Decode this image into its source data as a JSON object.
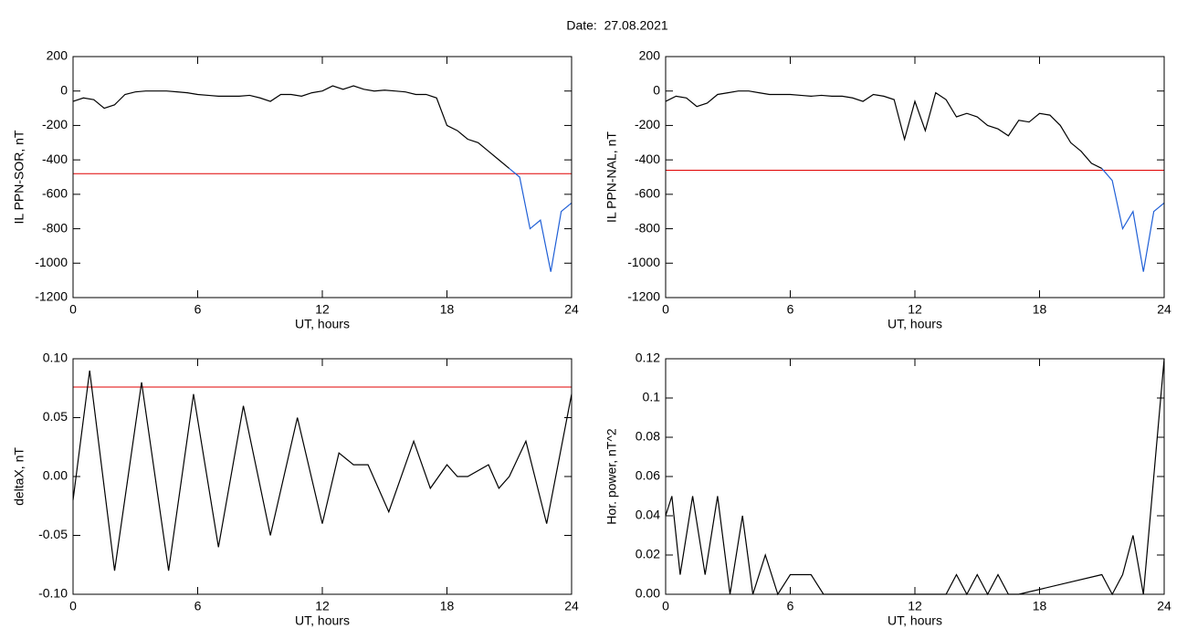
{
  "page_title": "Date:  27.08.2021",
  "chart_data": [
    {
      "type": "line",
      "ylabel": "IL PPN-SOR, nT",
      "xlabel": "UT, hours",
      "x": [
        0,
        0.5,
        1,
        1.5,
        2,
        2.5,
        3,
        3.5,
        4,
        4.5,
        5,
        5.5,
        6,
        6.5,
        7,
        7.5,
        8,
        8.5,
        9,
        9.5,
        10,
        10.5,
        11,
        11.5,
        12,
        12.5,
        13,
        13.5,
        14,
        14.5,
        15,
        15.5,
        16,
        16.5,
        17,
        17.5,
        18,
        18.5,
        19,
        19.5,
        20,
        20.5,
        21,
        21.5,
        22,
        22.5,
        23,
        23.5,
        24
      ],
      "series": [
        {
          "color": "#000000",
          "values": [
            -60,
            -40,
            -50,
            -100,
            -80,
            -20,
            -5,
            0,
            0,
            0,
            -5,
            -10,
            -20,
            -25,
            -30,
            -30,
            -30,
            -25,
            -40,
            -60,
            -20,
            -20,
            -30,
            -10,
            0,
            30,
            10,
            30,
            10,
            0,
            5,
            0,
            -5,
            -20,
            -20,
            -40,
            -200,
            -230,
            -280,
            -300,
            -350,
            -400,
            -450,
            null,
            null,
            null,
            null,
            null,
            null
          ]
        },
        {
          "color": "#1f5fd6",
          "values": [
            null,
            null,
            null,
            null,
            null,
            null,
            null,
            null,
            null,
            null,
            null,
            null,
            null,
            null,
            null,
            null,
            null,
            null,
            null,
            null,
            null,
            null,
            null,
            null,
            null,
            null,
            null,
            null,
            null,
            null,
            null,
            null,
            null,
            null,
            null,
            null,
            null,
            null,
            null,
            null,
            null,
            null,
            -450,
            -500,
            -800,
            -750,
            -1050,
            -700,
            -650
          ]
        }
      ],
      "hline": {
        "value": -480,
        "color": "#e00000"
      },
      "xlim": [
        0,
        24
      ],
      "xticks": [
        0,
        6,
        12,
        18,
        24
      ],
      "ylim": [
        -1200,
        200
      ],
      "yticks": [
        200,
        0,
        -200,
        -400,
        -600,
        -800,
        -1000,
        -1200
      ]
    },
    {
      "type": "line",
      "ylabel": "IL PPN-NAL, nT",
      "xlabel": "UT, hours",
      "x": [
        0,
        0.5,
        1,
        1.5,
        2,
        2.5,
        3,
        3.5,
        4,
        4.5,
        5,
        5.5,
        6,
        6.5,
        7,
        7.5,
        8,
        8.5,
        9,
        9.5,
        10,
        10.5,
        11,
        11.5,
        12,
        12.5,
        13,
        13.5,
        14,
        14.5,
        15,
        15.5,
        16,
        16.5,
        17,
        17.5,
        18,
        18.5,
        19,
        19.5,
        20,
        20.5,
        21,
        21.5,
        22,
        22.5,
        23,
        23.5,
        24
      ],
      "series": [
        {
          "color": "#000000",
          "values": [
            -60,
            -30,
            -40,
            -90,
            -70,
            -20,
            -10,
            0,
            0,
            -10,
            -20,
            -20,
            -20,
            -25,
            -30,
            -25,
            -30,
            -30,
            -40,
            -60,
            -20,
            -30,
            -50,
            -280,
            -60,
            -230,
            -10,
            -50,
            -150,
            -130,
            -150,
            -200,
            -220,
            -260,
            -170,
            -180,
            -130,
            -140,
            -200,
            -300,
            -350,
            -420,
            -450,
            null,
            null,
            null,
            null,
            null,
            null
          ]
        },
        {
          "color": "#1f5fd6",
          "values": [
            null,
            null,
            null,
            null,
            null,
            null,
            null,
            null,
            null,
            null,
            null,
            null,
            null,
            null,
            null,
            null,
            null,
            null,
            null,
            null,
            null,
            null,
            null,
            null,
            null,
            null,
            null,
            null,
            null,
            null,
            null,
            null,
            null,
            null,
            null,
            null,
            null,
            null,
            null,
            null,
            null,
            null,
            -450,
            -520,
            -800,
            -700,
            -1050,
            -700,
            -650
          ]
        }
      ],
      "hline": {
        "value": -460,
        "color": "#e00000"
      },
      "xlim": [
        0,
        24
      ],
      "xticks": [
        0,
        6,
        12,
        18,
        24
      ],
      "ylim": [
        -1200,
        200
      ],
      "yticks": [
        200,
        0,
        -200,
        -400,
        -600,
        -800,
        -1000,
        -1200
      ]
    },
    {
      "type": "line",
      "ylabel": "deltaX, nT",
      "xlabel": "UT, hours",
      "x": [
        0,
        0.8,
        2,
        3.3,
        4.6,
        5.8,
        7,
        8.2,
        9.5,
        10.8,
        12,
        12.8,
        13.5,
        14.2,
        15.2,
        16.4,
        17.2,
        18,
        18.5,
        19,
        20,
        20.5,
        21,
        21.8,
        22.8,
        24
      ],
      "series": [
        {
          "color": "#000000",
          "values": [
            -0.02,
            0.09,
            -0.08,
            0.08,
            -0.08,
            0.07,
            -0.06,
            0.06,
            -0.05,
            0.05,
            -0.04,
            0.02,
            0.01,
            0.01,
            -0.03,
            0.03,
            -0.01,
            0.01,
            0,
            0,
            0.01,
            -0.01,
            0,
            0.03,
            -0.04,
            0.07
          ]
        }
      ],
      "hline": {
        "value": 0.076,
        "color": "#e00000"
      },
      "xlim": [
        0,
        24
      ],
      "xticks": [
        0,
        6,
        12,
        18,
        24
      ],
      "ylim": [
        -0.1,
        0.1
      ],
      "yticks": [
        {
          "value": 0.1,
          "label": "0.10"
        },
        0.05,
        {
          "value": 0,
          "label": "0.00"
        },
        -0.05,
        {
          "value": -0.1,
          "label": "-0.10"
        }
      ]
    },
    {
      "type": "line",
      "ylabel": "Hor. power, nT^2",
      "xlabel": "UT, hours",
      "x": [
        0,
        0.3,
        0.7,
        1.3,
        1.9,
        2.5,
        3.1,
        3.7,
        4.2,
        4.8,
        5.4,
        6,
        7,
        7.6,
        13.5,
        14,
        14.5,
        15,
        15.5,
        16,
        16.5,
        17,
        21,
        21.5,
        22,
        22.5,
        23,
        24
      ],
      "series": [
        {
          "color": "#000000",
          "values": [
            0.04,
            0.05,
            0.01,
            0.05,
            0.01,
            0.05,
            0,
            0.04,
            0,
            0.02,
            0,
            0.01,
            0.01,
            0,
            0,
            0.01,
            0,
            0.01,
            0,
            0.01,
            0,
            0,
            0.01,
            0,
            0.01,
            0.03,
            0,
            0.12
          ]
        }
      ],
      "xlim": [
        0,
        24
      ],
      "xticks": [
        0,
        6,
        12,
        18,
        24
      ],
      "ylim": [
        0,
        0.12
      ],
      "yticks": [
        {
          "value": 0,
          "label": "0.00"
        },
        0.02,
        0.04,
        0.06,
        0.08,
        0.1,
        0.12
      ]
    }
  ]
}
